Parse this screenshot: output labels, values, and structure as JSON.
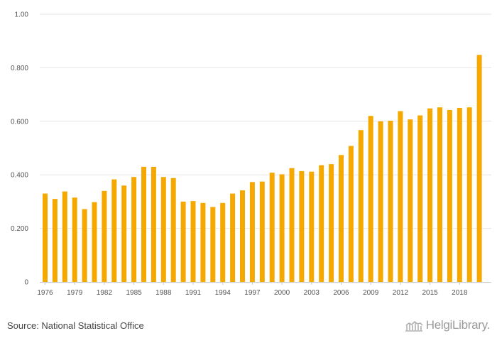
{
  "chart_data": {
    "type": "bar",
    "title": "",
    "xlabel": "",
    "ylabel": "",
    "ylim": [
      0,
      1.0
    ],
    "y_ticks": [
      "0",
      "0.200",
      "0.400",
      "0.600",
      "0.800",
      "1.00"
    ],
    "y_tick_values": [
      0,
      0.2,
      0.4,
      0.6,
      0.8,
      1.0
    ],
    "x_tick_labels": [
      "1976",
      "1979",
      "1982",
      "1985",
      "1988",
      "1991",
      "1994",
      "1997",
      "2000",
      "2003",
      "2006",
      "2009",
      "2012",
      "2015",
      "2018"
    ],
    "grid": true,
    "bar_color": "#F5A800",
    "categories": [
      1976,
      1977,
      1978,
      1979,
      1980,
      1981,
      1982,
      1983,
      1984,
      1985,
      1986,
      1987,
      1988,
      1989,
      1990,
      1991,
      1992,
      1993,
      1994,
      1995,
      1996,
      1997,
      1998,
      1999,
      2000,
      2001,
      2002,
      2003,
      2004,
      2005,
      2006,
      2007,
      2008,
      2009,
      2010,
      2011,
      2012,
      2013,
      2014,
      2015,
      2016,
      2017,
      2018,
      2019,
      2020
    ],
    "values": [
      0.33,
      0.31,
      0.338,
      0.315,
      0.272,
      0.298,
      0.34,
      0.383,
      0.36,
      0.392,
      0.43,
      0.43,
      0.392,
      0.388,
      0.3,
      0.302,
      0.295,
      0.28,
      0.295,
      0.33,
      0.342,
      0.373,
      0.375,
      0.408,
      0.402,
      0.425,
      0.414,
      0.412,
      0.436,
      0.44,
      0.474,
      0.508,
      0.567,
      0.62,
      0.6,
      0.602,
      0.638,
      0.607,
      0.622,
      0.648,
      0.652,
      0.642,
      0.65,
      0.652,
      0.848
    ]
  },
  "footer": {
    "source": "Source: National Statistical Office",
    "logo_text": "HelgiLibrary."
  },
  "colors": {
    "bar": "#F5A800",
    "grid": "#e6e6e6",
    "axis": "#c8c8c8",
    "tick_text": "#555555"
  }
}
